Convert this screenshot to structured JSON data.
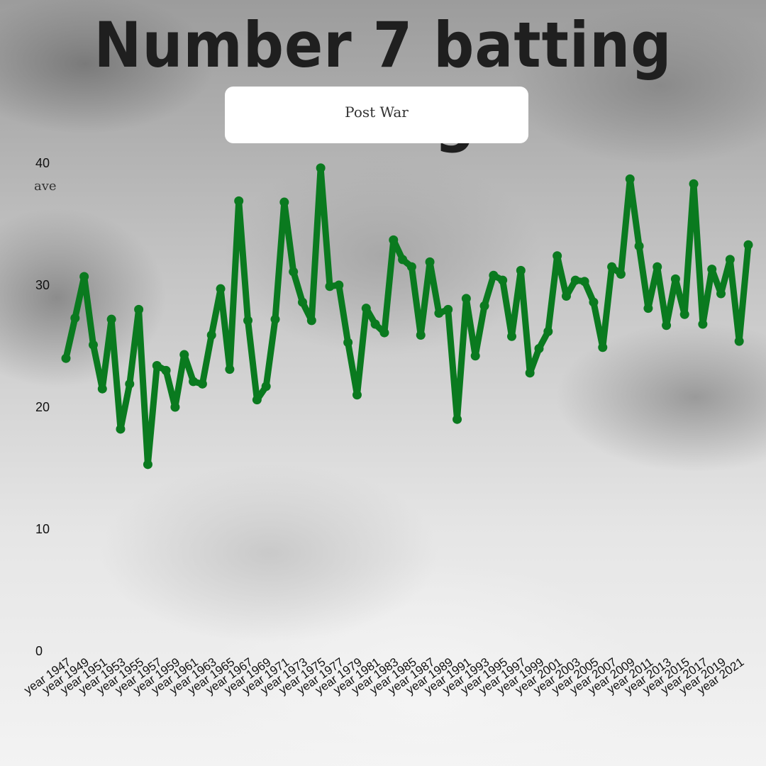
{
  "title": "Number 7 batting average",
  "subtitle": "Post War",
  "chart_data": {
    "type": "line",
    "title": "Number 7 batting average",
    "subtitle": "Post War",
    "ylabel": "ave",
    "ylim": [
      0,
      40
    ],
    "yticks": [
      0,
      10,
      20,
      30,
      40
    ],
    "color": "#0a7a1f",
    "categories": [
      "year 1947",
      "year 1948",
      "year 1949",
      "year 1950",
      "year 1951",
      "year 1952",
      "year 1953",
      "year 1954",
      "year 1955",
      "year 1956",
      "year 1957",
      "year 1958",
      "year 1959",
      "year 1960",
      "year 1961",
      "year 1962",
      "year 1963",
      "year 1964",
      "year 1965",
      "year 1966",
      "year 1967",
      "year 1968",
      "year 1969",
      "year 1970",
      "year 1971",
      "year 1972",
      "year 1973",
      "year 1974",
      "year 1975",
      "year 1976",
      "year 1977",
      "year 1978",
      "year 1979",
      "year 1980",
      "year 1981",
      "year 1982",
      "year 1983",
      "year 1984",
      "year 1985",
      "year 1986",
      "year 1987",
      "year 1988",
      "year 1989",
      "year 1990",
      "year 1991",
      "year 1992",
      "year 1993",
      "year 1994",
      "year 1995",
      "year 1996",
      "year 1997",
      "year 1998",
      "year 1999",
      "year 2000",
      "year 2001",
      "year 2002",
      "year 2003",
      "year 2004",
      "year 2005",
      "year 2006",
      "year 2007",
      "year 2008",
      "year 2009",
      "year 2010",
      "year 2011",
      "year 2012",
      "year 2013",
      "year 2014",
      "year 2015",
      "year 2016",
      "year 2017",
      "year 2018",
      "year 2019",
      "year 2020",
      "year 2021",
      "year 2022"
    ],
    "tick_labels": [
      "year 1947",
      "year 1949",
      "year 1951",
      "year 1953",
      "year 1955",
      "year 1957",
      "year 1959",
      "year 1961",
      "year 1963",
      "year 1965",
      "year 1967",
      "year 1969",
      "year 1971",
      "year 1973",
      "year 1975",
      "year 1977",
      "year 1979",
      "year 1981",
      "year 1983",
      "year 1985",
      "year 1987",
      "year 1989",
      "year 1991",
      "year 1993",
      "year 1995",
      "year 1997",
      "year 1999",
      "year 2001",
      "year 2003",
      "year 2005",
      "year 2007",
      "year 2009",
      "year 2011",
      "year 2013",
      "year 2015",
      "year 2017",
      "year 2019",
      "year 2021"
    ],
    "values": [
      24.0,
      27.3,
      30.7,
      25.1,
      21.5,
      27.2,
      18.2,
      21.9,
      28.0,
      15.3,
      23.4,
      23.0,
      20.0,
      24.3,
      22.1,
      21.9,
      25.9,
      29.7,
      23.1,
      36.9,
      27.1,
      20.6,
      21.7,
      27.2,
      36.8,
      31.1,
      28.6,
      27.1,
      39.6,
      29.9,
      30.0,
      25.3,
      21.0,
      28.1,
      26.8,
      26.1,
      33.7,
      32.1,
      31.5,
      25.9,
      31.9,
      27.7,
      28.0,
      19.0,
      28.9,
      24.2,
      28.3,
      30.8,
      30.4,
      25.8,
      31.2,
      22.8,
      24.8,
      26.2,
      32.4,
      29.1,
      30.4,
      30.3,
      28.6,
      24.9,
      31.5,
      30.9,
      38.7,
      33.2,
      28.1,
      31.5,
      26.7,
      30.5,
      27.6,
      38.3,
      26.8,
      31.3,
      29.3,
      32.1,
      25.4,
      33.3
    ]
  }
}
